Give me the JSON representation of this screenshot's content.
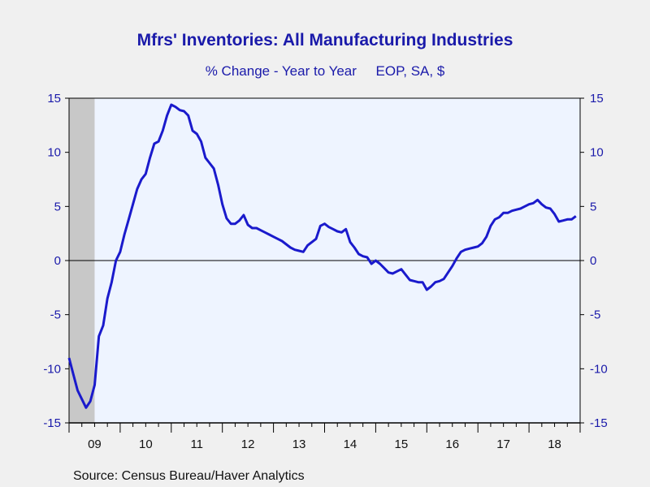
{
  "chart_data": {
    "type": "line",
    "title": "Mfrs' Inventories: All Manufacturing Industries",
    "subtitle_left": "% Change - Year to Year",
    "subtitle_right": "EOP, SA, $",
    "source": "Source:  Census Bureau/Haver Analytics",
    "ylim": [
      -15,
      15
    ],
    "yticks": [
      15,
      10,
      5,
      0,
      -5,
      -10,
      -15
    ],
    "xlim": [
      2009.0,
      2019.0
    ],
    "xtick_labels": [
      "09",
      "10",
      "11",
      "12",
      "13",
      "14",
      "15",
      "16",
      "17",
      "18"
    ],
    "xtick_positions": [
      2009,
      2010,
      2011,
      2012,
      2013,
      2014,
      2015,
      2016,
      2017,
      2018
    ],
    "recession_shading": [
      [
        2009.0,
        2009.5
      ]
    ],
    "grid": false,
    "colors": {
      "line": "#1a1acc",
      "plot_bg": "#eef4ff",
      "recession": "#c8c8c8",
      "text": "#1a1aaa"
    },
    "series": [
      {
        "x": [
          2009.0,
          2009.083,
          2009.167,
          2009.25,
          2009.333,
          2009.417,
          2009.5,
          2009.583,
          2009.667,
          2009.75,
          2009.833,
          2009.917,
          2010.0,
          2010.083,
          2010.167,
          2010.25,
          2010.333,
          2010.417,
          2010.5,
          2010.583,
          2010.667,
          2010.75,
          2010.833,
          2010.917,
          2011.0,
          2011.083,
          2011.167,
          2011.25,
          2011.333,
          2011.417,
          2011.5,
          2011.583,
          2011.667,
          2011.75,
          2011.833,
          2011.917,
          2012.0,
          2012.083,
          2012.167,
          2012.25,
          2012.333,
          2012.417,
          2012.5,
          2012.583,
          2012.667,
          2012.75,
          2012.833,
          2012.917,
          2013.0,
          2013.083,
          2013.167,
          2013.25,
          2013.333,
          2013.417,
          2013.5,
          2013.583,
          2013.667,
          2013.75,
          2013.833,
          2013.917,
          2014.0,
          2014.083,
          2014.167,
          2014.25,
          2014.333,
          2014.417,
          2014.5,
          2014.583,
          2014.667,
          2014.75,
          2014.833,
          2014.917,
          2015.0,
          2015.083,
          2015.167,
          2015.25,
          2015.333,
          2015.417,
          2015.5,
          2015.583,
          2015.667,
          2015.75,
          2015.833,
          2015.917,
          2016.0,
          2016.083,
          2016.167,
          2016.25,
          2016.333,
          2016.417,
          2016.5,
          2016.583,
          2016.667,
          2016.75,
          2016.833,
          2016.917,
          2017.0,
          2017.083,
          2017.167,
          2017.25,
          2017.333,
          2017.417,
          2017.5,
          2017.583,
          2017.667,
          2017.75,
          2017.833,
          2017.917,
          2018.0,
          2018.083,
          2018.167,
          2018.25,
          2018.333,
          2018.417,
          2018.5,
          2018.583,
          2018.667,
          2018.75,
          2018.833,
          2018.917
        ],
        "y": [
          -9.0,
          -10.5,
          -12.0,
          -12.8,
          -13.6,
          -13.0,
          -11.5,
          -7.0,
          -6.0,
          -3.5,
          -2.0,
          0.0,
          0.8,
          2.4,
          3.8,
          5.2,
          6.6,
          7.5,
          8.0,
          9.5,
          10.8,
          11.0,
          12.0,
          13.4,
          14.4,
          14.2,
          13.9,
          13.8,
          13.4,
          12.0,
          11.7,
          11.0,
          9.5,
          9.0,
          8.5,
          7.0,
          5.2,
          3.9,
          3.4,
          3.4,
          3.7,
          4.2,
          3.3,
          3.0,
          3.0,
          2.8,
          2.6,
          2.4,
          2.2,
          2.0,
          1.8,
          1.5,
          1.2,
          1.0,
          0.9,
          0.8,
          1.4,
          1.7,
          2.0,
          3.2,
          3.4,
          3.1,
          2.9,
          2.7,
          2.6,
          2.9,
          1.7,
          1.2,
          0.6,
          0.4,
          0.3,
          -0.3,
          0.0,
          -0.3,
          -0.7,
          -1.1,
          -1.2,
          -1.0,
          -0.8,
          -1.3,
          -1.8,
          -1.9,
          -2.0,
          -2.0,
          -2.7,
          -2.4,
          -2.0,
          -1.9,
          -1.7,
          -1.1,
          -0.5,
          0.2,
          0.8,
          1.0,
          1.1,
          1.2,
          1.3,
          1.6,
          2.2,
          3.2,
          3.8,
          4.0,
          4.4,
          4.4,
          4.6,
          4.7,
          4.8,
          5.0,
          5.2,
          5.3,
          5.6,
          5.2,
          4.9,
          4.8,
          4.3,
          3.6,
          3.7,
          3.8,
          3.8,
          4.1
        ]
      }
    ]
  }
}
